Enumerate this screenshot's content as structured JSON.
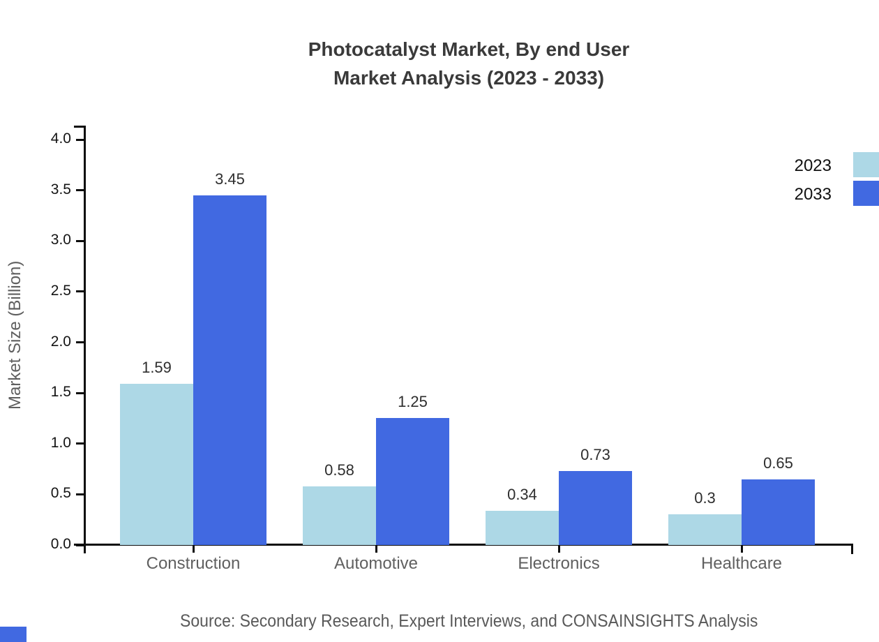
{
  "title": {
    "line1": "Photocatalyst Market, By end User",
    "line2": "Market Analysis (2023 - 2033)"
  },
  "chart_data": {
    "type": "bar",
    "categories": [
      "Construction",
      "Automotive",
      "Electronics",
      "Healthcare"
    ],
    "series": [
      {
        "name": "2023",
        "color": "#ADD8E6",
        "values": [
          1.59,
          0.58,
          0.34,
          0.3
        ]
      },
      {
        "name": "2033",
        "color": "#4169E1",
        "values": [
          3.45,
          1.25,
          0.73,
          0.65
        ]
      }
    ],
    "title": "Photocatalyst Market, By end User Market Analysis (2023 - 2033)",
    "xlabel": "",
    "ylabel": "Market Size (Billion)",
    "ylim": [
      0,
      4.0
    ],
    "ytick_labels": [
      "0.0",
      "0.5",
      "1.0",
      "1.5",
      "2.0",
      "2.5",
      "3.0",
      "3.5",
      "4.0"
    ],
    "grid": false,
    "bar_value_labels": true,
    "legend_position": "upper-right-outside"
  },
  "legend": {
    "items": [
      {
        "label": "2023",
        "color": "#ADD8E6"
      },
      {
        "label": "2033",
        "color": "#4169E1"
      }
    ]
  },
  "source": {
    "text": "Source: Secondary Research, Expert Interviews, and CONSAINSIGHTS Analysis"
  },
  "colors": {
    "series_2023": "#ADD8E6",
    "series_2033": "#4169E1",
    "axis": "#0d0d0d",
    "muted_text": "#5f5f5f",
    "title_text": "#3a3a3a"
  }
}
